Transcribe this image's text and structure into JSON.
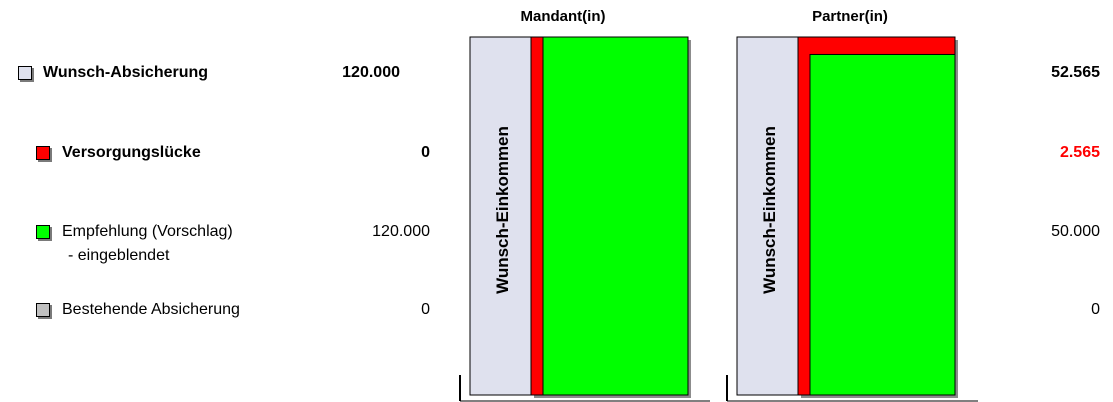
{
  "legend": {
    "items": [
      {
        "label": "Wunsch-Absicherung",
        "sublabel": "",
        "color": "#dfe1ee",
        "bold": true,
        "left_value": "120.000",
        "right_value": "52.565",
        "right_highlight": false
      },
      {
        "label": "Versorgungslücke",
        "sublabel": "",
        "color": "#ff0000",
        "bold": true,
        "left_value": "0",
        "right_value": "2.565",
        "right_highlight": true
      },
      {
        "label": "Empfehlung (Vorschlag)",
        "sublabel": "- eingeblendet",
        "color": "#00ff00",
        "bold": false,
        "left_value": "120.000",
        "right_value": "50.000",
        "right_highlight": false
      },
      {
        "label": "Bestehende Absicherung",
        "sublabel": "",
        "color": "#c0c0c0",
        "bold": false,
        "left_value": "0",
        "right_value": "0",
        "right_highlight": false
      }
    ]
  },
  "colors": {
    "wunsch": "#dfe1ee",
    "luecke": "#ff0000",
    "empfehlung": "#00ff00",
    "bestehend": "#c0c0c0",
    "highlight_text": "#ff0000"
  },
  "chart_data": {
    "type": "bar",
    "categories": [
      "Mandant(in)",
      "Partner(in)"
    ],
    "bar_label": "Wunsch-Einkommen",
    "series": [
      {
        "name": "Wunsch-Absicherung",
        "values": [
          120000,
          52565
        ]
      },
      {
        "name": "Versorgungslücke",
        "values": [
          0,
          2565
        ]
      },
      {
        "name": "Empfehlung (Vorschlag)",
        "values": [
          120000,
          50000
        ]
      },
      {
        "name": "Bestehende Absicherung",
        "values": [
          0,
          0
        ]
      }
    ]
  }
}
